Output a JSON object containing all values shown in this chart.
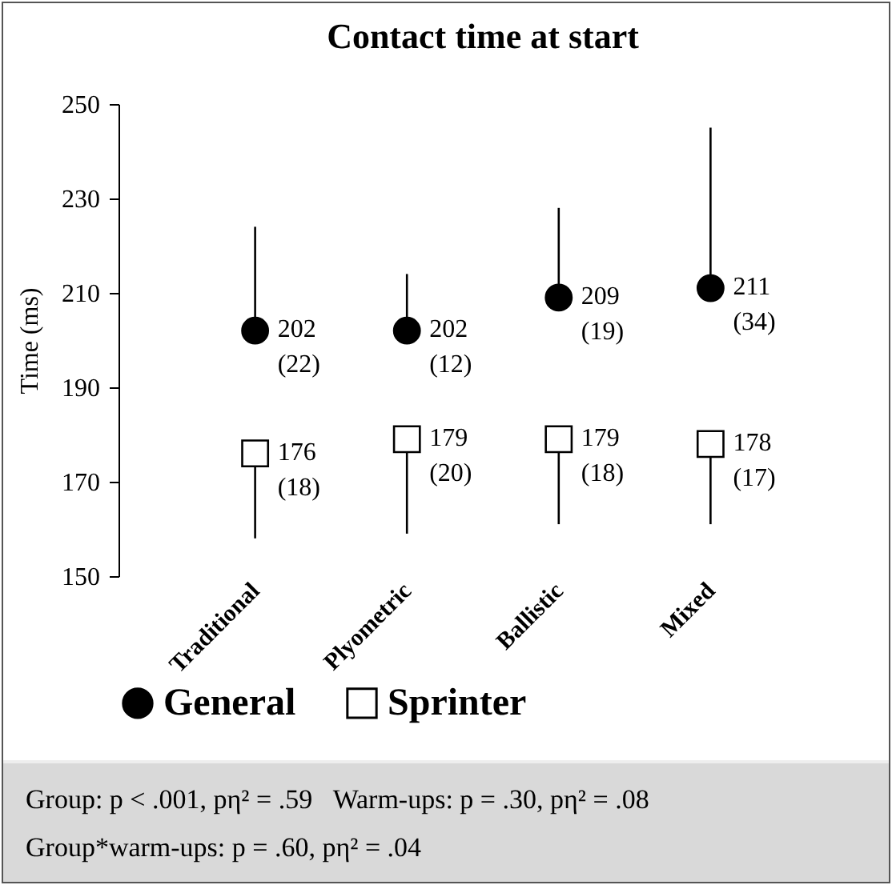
{
  "chart_data": {
    "type": "scatter",
    "title": "Contact time at start",
    "ylabel": "Time (ms)",
    "categories": [
      "Traditional",
      "Plyometric",
      "Ballistic",
      "Mixed"
    ],
    "ylim": [
      150,
      250
    ],
    "yticks": [
      150,
      170,
      190,
      210,
      230,
      250
    ],
    "grid": false,
    "legend": "bottom",
    "series": [
      {
        "name": "General",
        "color": "#000000",
        "marker": "circle",
        "values": [
          202,
          202,
          209,
          211
        ],
        "errors": [
          [
            202,
            224
          ],
          [
            202,
            214
          ],
          [
            209,
            228
          ],
          [
            211,
            245
          ]
        ],
        "value_labels": [
          "202 (22)",
          "202 (12)",
          "209 (19)",
          "211 (34)"
        ]
      },
      {
        "name": "Sprinter",
        "color": "#000000",
        "marker": "square",
        "values": [
          176,
          179,
          179,
          178
        ],
        "errors": [
          [
            158,
            176
          ],
          [
            159,
            179
          ],
          [
            161,
            179
          ],
          [
            161,
            178
          ]
        ],
        "value_labels": [
          "176 (18)",
          "179 (20)",
          "179 (18)",
          "178 (17)"
        ]
      }
    ],
    "annotations": [
      "Group: p < .001, pη² = .59   Warm-ups: p = .30, pη² = .08",
      "Group*warm-ups: p = .60, pη² = .04"
    ]
  }
}
